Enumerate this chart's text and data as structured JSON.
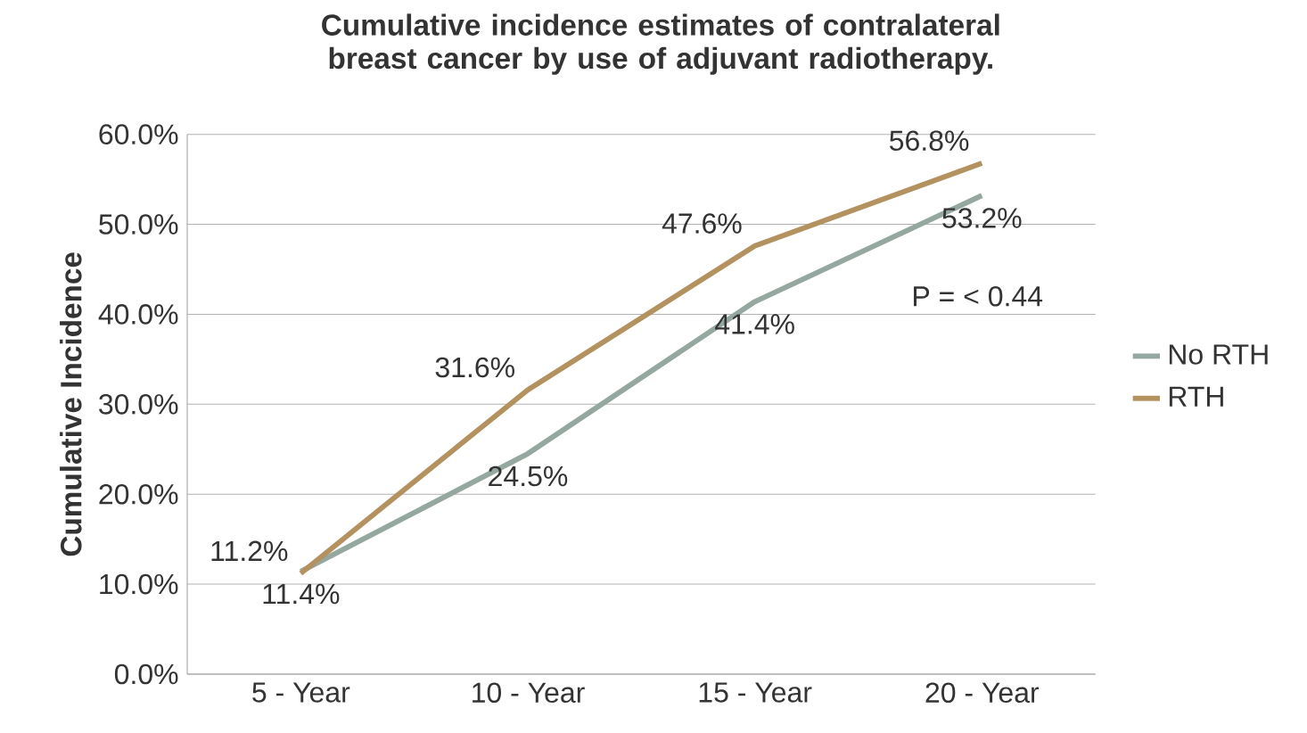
{
  "chart_data": {
    "type": "line",
    "title": "Cumulative incidence estimates of contralateral breast cancer by use of adjuvant radiotherapy.",
    "ylabel": "Cumulative Incidence",
    "categories": [
      "5 - Year",
      "10 - Year",
      "15 - Year",
      "20 - Year"
    ],
    "series": [
      {
        "name": "No RTH",
        "color": "#95a8a0",
        "values": [
          11.4,
          24.5,
          41.4,
          53.2
        ],
        "value_labels": [
          "11.4%",
          "24.5%",
          "41.4%",
          "53.2%"
        ]
      },
      {
        "name": "RTH",
        "color": "#b39260",
        "values": [
          11.2,
          31.6,
          47.6,
          56.8
        ],
        "value_labels": [
          "11.2%",
          "31.6%",
          "47.6%",
          "56.8%"
        ]
      }
    ],
    "ylim": [
      0,
      60
    ],
    "yticks": [
      {
        "value": 0,
        "label": "0.0%"
      },
      {
        "value": 10,
        "label": "10.0%"
      },
      {
        "value": 20,
        "label": "20.0%"
      },
      {
        "value": 30,
        "label": "30.0%"
      },
      {
        "value": 40,
        "label": "40.0%"
      },
      {
        "value": 50,
        "label": "50.0%"
      },
      {
        "value": 60,
        "label": "60.0%"
      }
    ],
    "grid": "y",
    "legend": "right",
    "marker": "none",
    "line_style": "solid",
    "annotations": [
      "P = < 0.44"
    ]
  }
}
